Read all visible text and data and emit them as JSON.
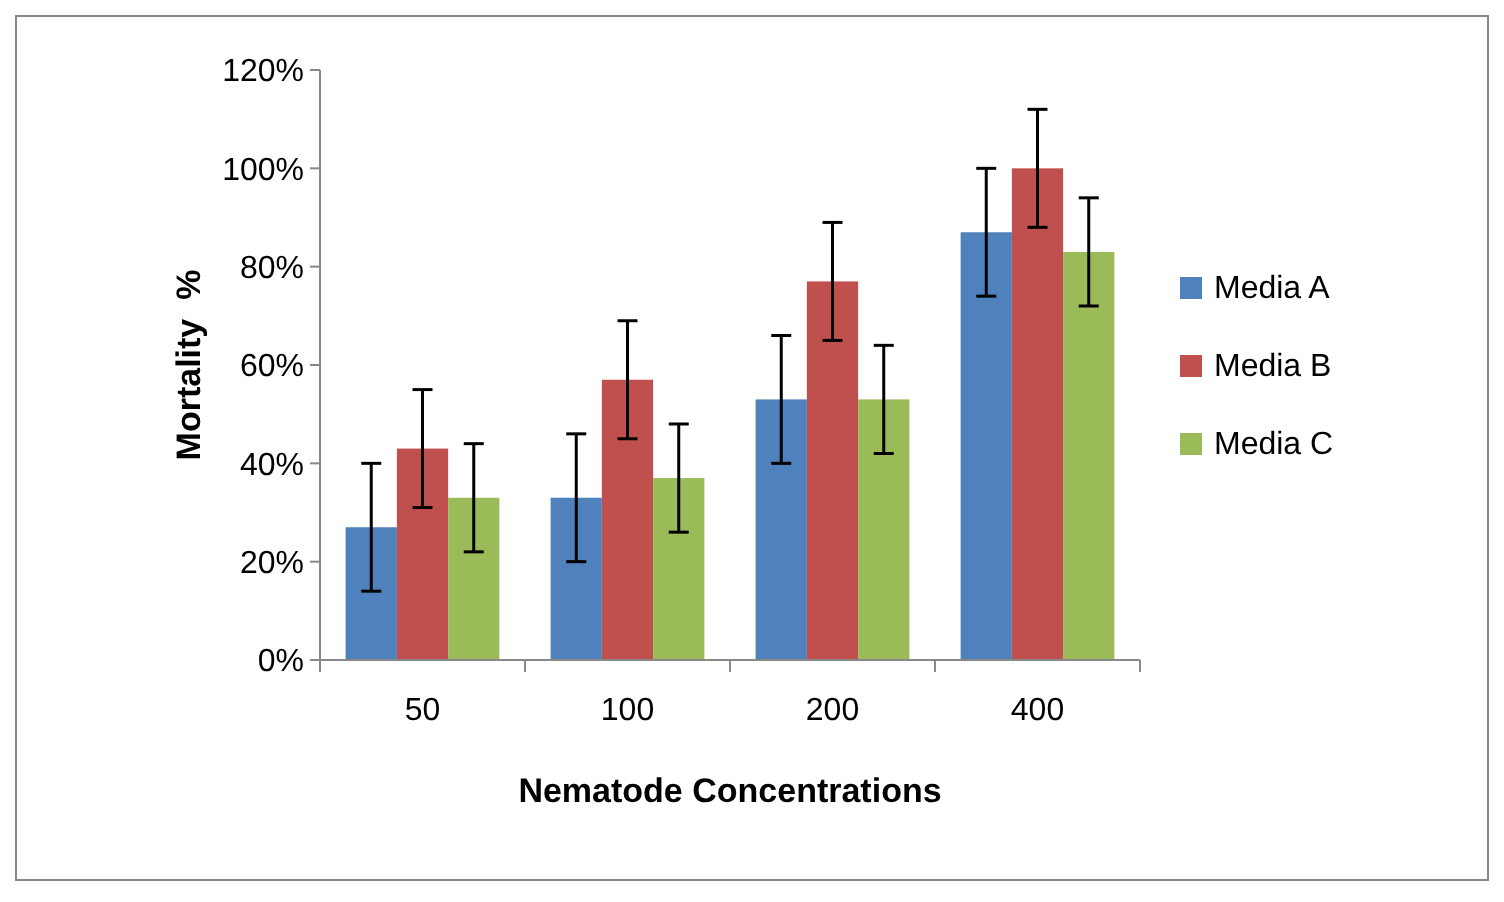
{
  "chart_data": {
    "type": "bar",
    "xlabel": "Nematode Concentrations",
    "ylabel": "Mortality  %",
    "categories": [
      "50",
      "100",
      "200",
      "400"
    ],
    "series": [
      {
        "name": "Media A",
        "color": "#4f81bd",
        "values": [
          27,
          33,
          53,
          87
        ],
        "errors": [
          13,
          13,
          13,
          13
        ]
      },
      {
        "name": "Media B",
        "color": "#c0504d",
        "values": [
          43,
          57,
          77,
          100
        ],
        "errors": [
          12,
          12,
          12,
          12
        ]
      },
      {
        "name": "Media C",
        "color": "#9bbb59",
        "values": [
          33,
          37,
          53,
          83
        ],
        "errors": [
          11,
          11,
          11,
          11
        ]
      }
    ],
    "ylim": [
      0,
      120
    ],
    "yticks": [
      {
        "value": 0,
        "label": "0%"
      },
      {
        "value": 20,
        "label": "20%"
      },
      {
        "value": 40,
        "label": "40%"
      },
      {
        "value": 60,
        "label": "60%"
      },
      {
        "value": 80,
        "label": "80%"
      },
      {
        "value": 100,
        "label": "100%"
      },
      {
        "value": 120,
        "label": "120%"
      }
    ],
    "grid": false,
    "legend": "right"
  }
}
